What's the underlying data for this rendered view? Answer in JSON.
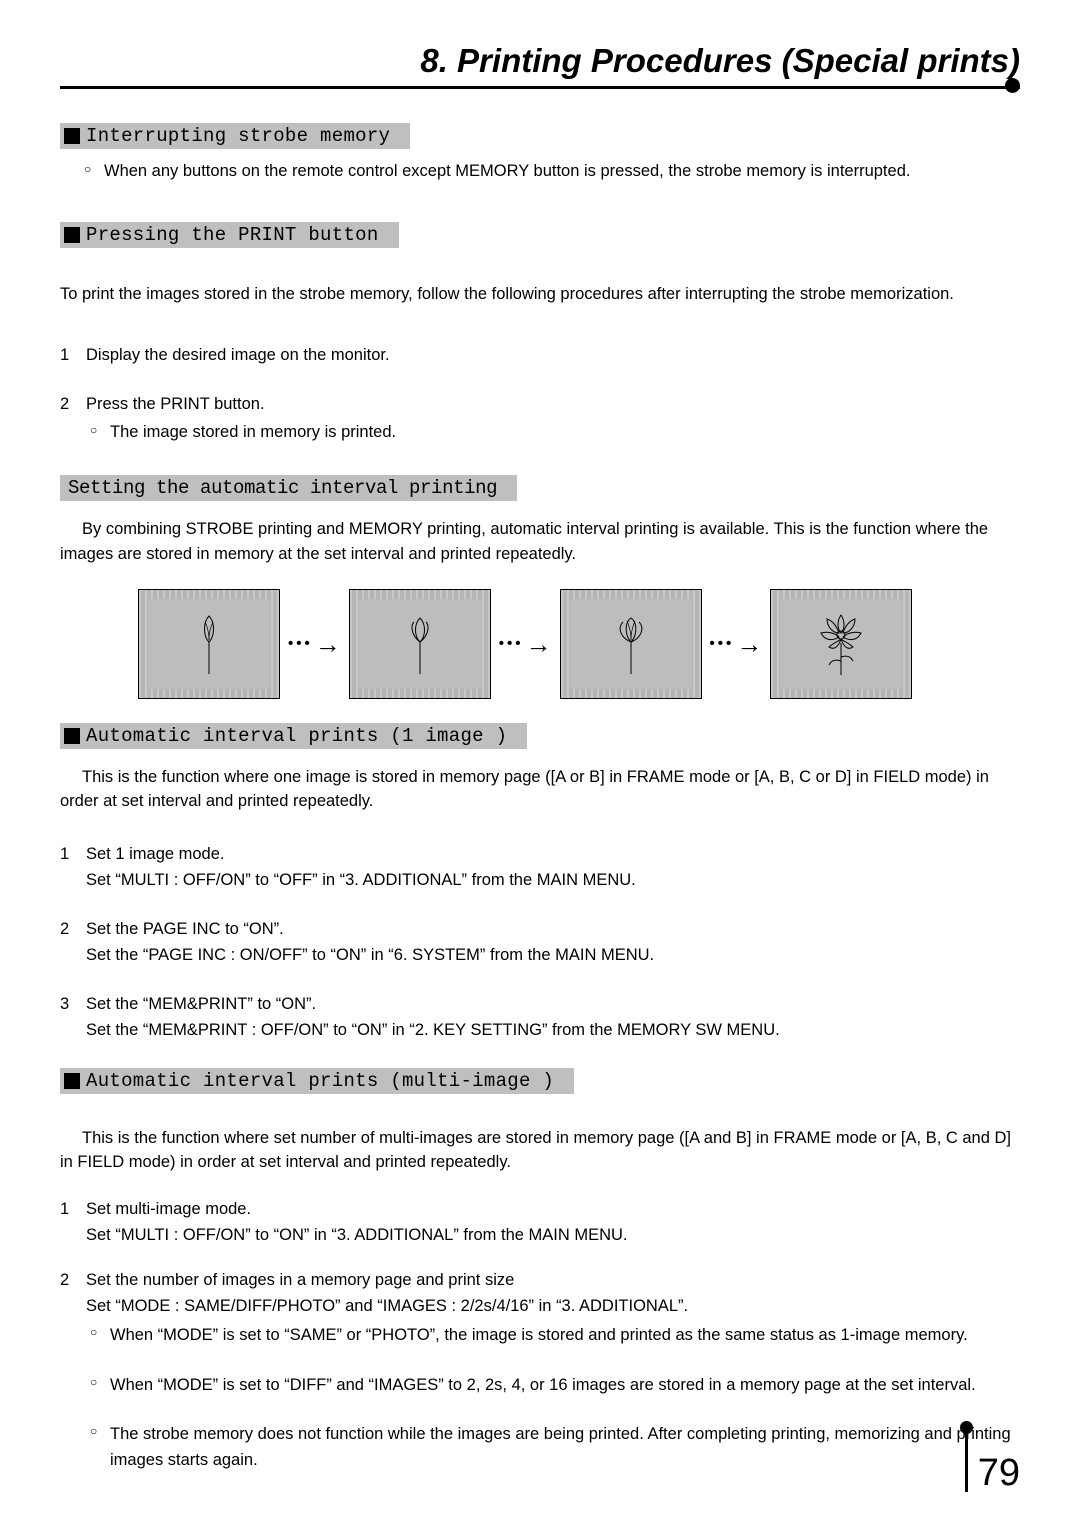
{
  "chapter_title": "8. Printing Procedures (Special prints)",
  "page_number": "79",
  "sect1": {
    "heading": "Interrupting strobe memory",
    "bullet": "When any buttons on the remote control except MEMORY button is pressed, the strobe memory is interrupted."
  },
  "sect2": {
    "heading": "Pressing the PRINT button",
    "intro": "To print the images stored in the strobe memory, follow the following procedures after interrupting the strobe memorization.",
    "step1": "Display the desired image on the monitor.",
    "step2": "Press the PRINT button.",
    "step2_sub": "The image stored in memory is printed."
  },
  "sect3": {
    "heading": "Setting the automatic interval printing",
    "para": "By combining STROBE printing and MEMORY printing, automatic interval printing is available.  This is the function where the images are stored in memory at the set interval and printed repeatedly."
  },
  "sect4": {
    "heading": "Automatic interval prints (1 image )",
    "para": "This is the function where one image is stored in memory page ([A or B] in FRAME mode or [A, B, C or D] in FIELD mode) in order at set interval and printed repeatedly.",
    "s1a": "Set 1 image mode.",
    "s1b": "Set “MULTI : OFF/ON” to “OFF” in “3. ADDITIONAL” from the MAIN MENU.",
    "s2a": "Set the PAGE INC to “ON”.",
    "s2b": "Set the “PAGE INC : ON/OFF” to “ON” in “6. SYSTEM” from the MAIN MENU.",
    "s3a": "Set the “MEM&PRINT” to “ON”.",
    "s3b": "Set the “MEM&PRINT : OFF/ON” to “ON” in “2. KEY SETTING” from the MEMORY SW MENU."
  },
  "sect5": {
    "heading": "Automatic interval prints (multi-image )",
    "para": "This is the function where set number of multi-images are stored in memory page ([A and B] in FRAME mode or [A, B, C and D] in FIELD mode) in order at set interval and printed repeatedly.",
    "s1a": "Set multi-image mode.",
    "s1b": "Set “MULTI : OFF/ON” to “ON” in “3. ADDITIONAL” from the MAIN MENU.",
    "s2a": "Set the number of images in a memory page and print size",
    "s2b": "Set “MODE : SAME/DIFF/PHOTO” and “IMAGES : 2/2s/4/16” in “3. ADDITIONAL”.",
    "s2c1": "When “MODE” is set to “SAME” or “PHOTO”, the image is stored and printed as the same status as 1-image memory.",
    "s2c2": "When “MODE” is set to “DIFF” and “IMAGES” to 2, 2s, 4, or 16 images are stored in a memory page at the set interval.",
    "s2c3": "The strobe memory does not function while the images are being printed.  After completing printing, memorizing and printing images starts again."
  },
  "diagram": {
    "frame_count": 4,
    "frame_bg": "#bdbdbd",
    "stripe_color": "#b5b5b5",
    "border_color": "#000000",
    "arrow_glyph": "→",
    "dots_glyph": "•••"
  }
}
